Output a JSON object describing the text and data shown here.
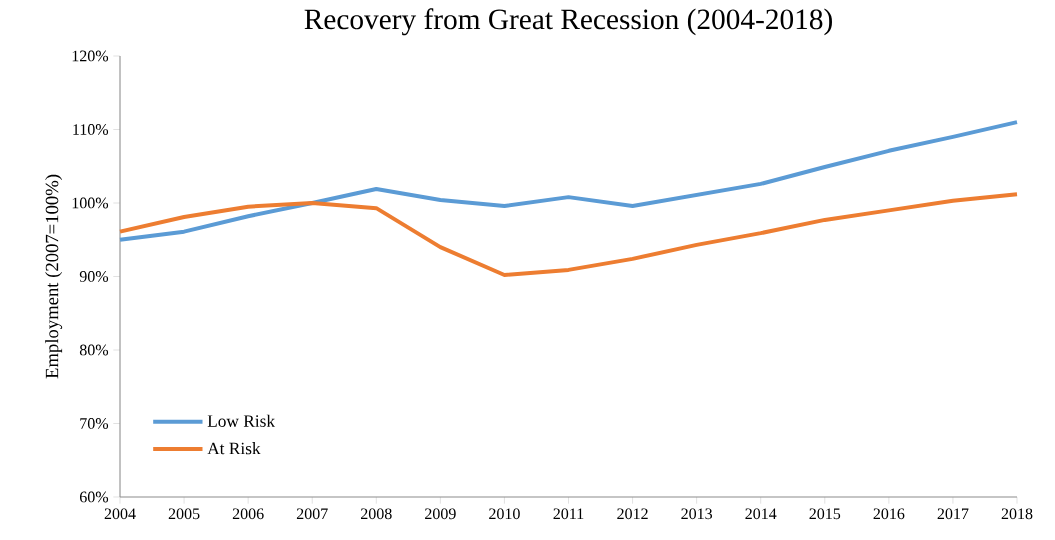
{
  "chart_data": {
    "type": "line",
    "title": "Recovery from Great Recession (2004-2018)",
    "ylabel": "Employment (2007=100%)",
    "categories": [
      "2004",
      "2005",
      "2006",
      "2007",
      "2008",
      "2009",
      "2010",
      "2011",
      "2012",
      "2013",
      "2014",
      "2015",
      "2016",
      "2017",
      "2018"
    ],
    "series": [
      {
        "name": "Low Risk",
        "color": "#5b9bd5",
        "values": [
          95.0,
          96.1,
          98.2,
          100.0,
          101.9,
          100.4,
          99.6,
          100.8,
          99.6,
          101.1,
          102.6,
          104.9,
          107.1,
          109.0,
          111.0
        ]
      },
      {
        "name": "At Risk",
        "color": "#ed7d31",
        "values": [
          96.1,
          98.1,
          99.5,
          100.0,
          99.3,
          94.0,
          90.2,
          90.9,
          92.4,
          94.3,
          95.9,
          97.7,
          99.0,
          100.3,
          101.2
        ]
      }
    ],
    "ylim": [
      60,
      120
    ],
    "yticks": [
      {
        "value": 60,
        "label": "60%"
      },
      {
        "value": 70,
        "label": "70%"
      },
      {
        "value": 80,
        "label": "80%"
      },
      {
        "value": 90,
        "label": "90%"
      },
      {
        "value": 100,
        "label": "100%"
      },
      {
        "value": 110,
        "label": "110%"
      },
      {
        "value": 120,
        "label": "120%"
      }
    ],
    "grid": false,
    "legend": "bottom left",
    "marker": "none",
    "line_style": "solid"
  }
}
